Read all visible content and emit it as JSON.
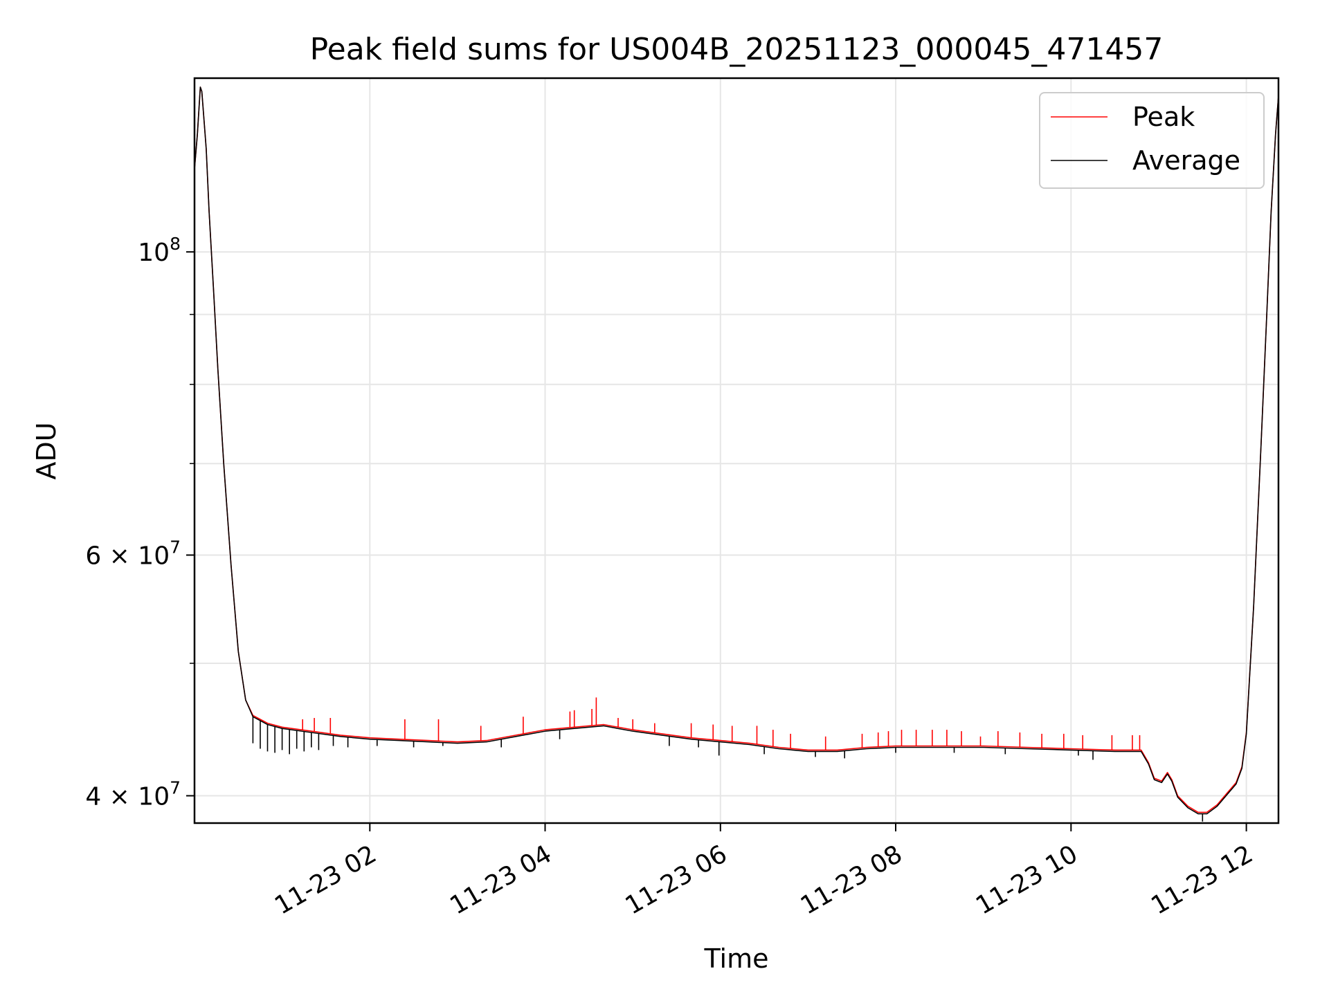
{
  "chart_data": {
    "type": "line",
    "title": "Peak field sums for US004B_20251123_000045_471457",
    "xlabel": "Time",
    "ylabel": "ADU",
    "x_type": "time",
    "xlim": [
      "2025-11-23 00:00",
      "2025-11-23 12:22"
    ],
    "ylim": [
      38200000,
      134000000
    ],
    "y_scale": "log",
    "grid": true,
    "legend_position": "top-right",
    "x_ticks": [
      {
        "value": "2025-11-23 02:00",
        "label": "11-23 02"
      },
      {
        "value": "2025-11-23 04:00",
        "label": "11-23 04"
      },
      {
        "value": "2025-11-23 06:00",
        "label": "11-23 06"
      },
      {
        "value": "2025-11-23 08:00",
        "label": "11-23 08"
      },
      {
        "value": "2025-11-23 10:00",
        "label": "11-23 10"
      },
      {
        "value": "2025-11-23 12:00",
        "label": "11-23 12"
      }
    ],
    "y_ticks": [
      {
        "value": 100000000,
        "base": "10",
        "exp": "8"
      },
      {
        "value": 60000000,
        "base": "6 × 10",
        "exp": "7"
      },
      {
        "value": 40000000,
        "base": "4 × 10",
        "exp": "7"
      }
    ],
    "y_minor_ticks": [
      50000000,
      70000000,
      80000000,
      90000000
    ],
    "series": [
      {
        "name": "Peak",
        "color": "#ff0000",
        "points": [
          [
            "00:00",
            115000000
          ],
          [
            "00:02",
            122000000
          ],
          [
            "00:04",
            132000000
          ],
          [
            "00:05",
            131000000
          ],
          [
            "00:08",
            119000000
          ],
          [
            "00:10",
            107000000
          ],
          [
            "00:13",
            94000000
          ],
          [
            "00:16",
            82000000
          ],
          [
            "00:20",
            70000000
          ],
          [
            "00:25",
            59000000
          ],
          [
            "00:30",
            51000000
          ],
          [
            "00:35",
            47000000
          ],
          [
            "00:40",
            45800000
          ],
          [
            "00:50",
            45200000
          ],
          [
            "01:00",
            44900000
          ],
          [
            "01:20",
            44600000
          ],
          [
            "01:40",
            44300000
          ],
          [
            "02:00",
            44100000
          ],
          [
            "02:20",
            44000000
          ],
          [
            "02:40",
            43900000
          ],
          [
            "03:00",
            43800000
          ],
          [
            "03:20",
            43900000
          ],
          [
            "03:40",
            44300000
          ],
          [
            "04:00",
            44700000
          ],
          [
            "04:20",
            44900000
          ],
          [
            "04:40",
            45100000
          ],
          [
            "05:00",
            44700000
          ],
          [
            "05:20",
            44400000
          ],
          [
            "05:40",
            44100000
          ],
          [
            "06:00",
            43900000
          ],
          [
            "06:20",
            43700000
          ],
          [
            "06:40",
            43400000
          ],
          [
            "07:00",
            43200000
          ],
          [
            "07:20",
            43200000
          ],
          [
            "07:40",
            43400000
          ],
          [
            "08:00",
            43500000
          ],
          [
            "08:30",
            43500000
          ],
          [
            "09:00",
            43500000
          ],
          [
            "09:30",
            43400000
          ],
          [
            "10:00",
            43300000
          ],
          [
            "10:30",
            43200000
          ],
          [
            "10:48",
            43200000
          ],
          [
            "10:53",
            42300000
          ],
          [
            "10:57",
            41200000
          ],
          [
            "11:02",
            41000000
          ],
          [
            "11:06",
            41600000
          ],
          [
            "11:09",
            41100000
          ],
          [
            "11:13",
            40000000
          ],
          [
            "11:20",
            39300000
          ],
          [
            "11:27",
            38900000
          ],
          [
            "11:33",
            38900000
          ],
          [
            "11:40",
            39400000
          ],
          [
            "11:47",
            40200000
          ],
          [
            "11:53",
            40900000
          ],
          [
            "11:57",
            42000000
          ],
          [
            "12:00",
            44500000
          ],
          [
            "12:05",
            55000000
          ],
          [
            "12:10",
            72000000
          ],
          [
            "12:14",
            90000000
          ],
          [
            "12:17",
            107000000
          ],
          [
            "12:20",
            122000000
          ],
          [
            "12:22",
            130000000
          ]
        ],
        "spikes": [
          [
            "01:14",
            45500000
          ],
          [
            "01:22",
            45600000
          ],
          [
            "01:33",
            45600000
          ],
          [
            "02:24",
            45500000
          ],
          [
            "02:47",
            45500000
          ],
          [
            "03:16",
            45000000
          ],
          [
            "03:45",
            45700000
          ],
          [
            "04:17",
            46100000
          ],
          [
            "04:20",
            46200000
          ],
          [
            "04:32",
            46300000
          ],
          [
            "04:35",
            47200000
          ],
          [
            "04:50",
            45600000
          ],
          [
            "05:00",
            45500000
          ],
          [
            "05:15",
            45200000
          ],
          [
            "05:40",
            45200000
          ],
          [
            "05:55",
            45100000
          ],
          [
            "06:08",
            45000000
          ],
          [
            "06:25",
            45000000
          ],
          [
            "06:36",
            44700000
          ],
          [
            "06:48",
            44400000
          ],
          [
            "07:12",
            44200000
          ],
          [
            "07:37",
            44400000
          ],
          [
            "07:48",
            44500000
          ],
          [
            "07:55",
            44600000
          ],
          [
            "08:04",
            44700000
          ],
          [
            "08:14",
            44700000
          ],
          [
            "08:25",
            44700000
          ],
          [
            "08:35",
            44700000
          ],
          [
            "08:45",
            44600000
          ],
          [
            "08:58",
            44200000
          ],
          [
            "09:10",
            44600000
          ],
          [
            "09:25",
            44500000
          ],
          [
            "09:40",
            44400000
          ],
          [
            "09:55",
            44400000
          ],
          [
            "10:08",
            44300000
          ],
          [
            "10:28",
            44300000
          ],
          [
            "10:42",
            44300000
          ],
          [
            "10:47",
            44300000
          ]
        ]
      },
      {
        "name": "Average",
        "color": "#000000",
        "points": [
          [
            "00:00",
            115000000
          ],
          [
            "00:02",
            122000000
          ],
          [
            "00:04",
            132000000
          ],
          [
            "00:05",
            131000000
          ],
          [
            "00:08",
            119000000
          ],
          [
            "00:10",
            107000000
          ],
          [
            "00:13",
            94000000
          ],
          [
            "00:16",
            82000000
          ],
          [
            "00:20",
            70000000
          ],
          [
            "00:25",
            59000000
          ],
          [
            "00:30",
            51000000
          ],
          [
            "00:35",
            47000000
          ],
          [
            "00:40",
            45700000
          ],
          [
            "00:50",
            45100000
          ],
          [
            "01:00",
            44800000
          ],
          [
            "01:20",
            44500000
          ],
          [
            "01:40",
            44200000
          ],
          [
            "02:00",
            44000000
          ],
          [
            "02:20",
            43900000
          ],
          [
            "02:40",
            43800000
          ],
          [
            "03:00",
            43700000
          ],
          [
            "03:20",
            43800000
          ],
          [
            "03:40",
            44200000
          ],
          [
            "04:00",
            44600000
          ],
          [
            "04:20",
            44800000
          ],
          [
            "04:40",
            45000000
          ],
          [
            "05:00",
            44600000
          ],
          [
            "05:20",
            44300000
          ],
          [
            "05:40",
            44000000
          ],
          [
            "06:00",
            43800000
          ],
          [
            "06:20",
            43600000
          ],
          [
            "06:40",
            43300000
          ],
          [
            "07:00",
            43100000
          ],
          [
            "07:20",
            43100000
          ],
          [
            "07:40",
            43300000
          ],
          [
            "08:00",
            43400000
          ],
          [
            "08:30",
            43400000
          ],
          [
            "09:00",
            43400000
          ],
          [
            "09:30",
            43300000
          ],
          [
            "10:00",
            43200000
          ],
          [
            "10:30",
            43100000
          ],
          [
            "10:48",
            43100000
          ],
          [
            "10:53",
            42200000
          ],
          [
            "10:57",
            41100000
          ],
          [
            "11:02",
            40900000
          ],
          [
            "11:06",
            41500000
          ],
          [
            "11:09",
            41000000
          ],
          [
            "11:13",
            39900000
          ],
          [
            "11:20",
            39200000
          ],
          [
            "11:27",
            38800000
          ],
          [
            "11:33",
            38800000
          ],
          [
            "11:40",
            39300000
          ],
          [
            "11:47",
            40100000
          ],
          [
            "11:53",
            40800000
          ],
          [
            "11:57",
            41900000
          ],
          [
            "12:00",
            44400000
          ],
          [
            "12:05",
            55000000
          ],
          [
            "12:10",
            72000000
          ],
          [
            "12:14",
            90000000
          ],
          [
            "12:17",
            107000000
          ],
          [
            "12:20",
            122000000
          ],
          [
            "12:22",
            130000000
          ]
        ],
        "dips": [
          [
            "00:40",
            43700000
          ],
          [
            "00:45",
            43300000
          ],
          [
            "00:50",
            43100000
          ],
          [
            "00:55",
            43000000
          ],
          [
            "01:00",
            43200000
          ],
          [
            "01:05",
            42900000
          ],
          [
            "01:10",
            43300000
          ],
          [
            "01:15",
            43100000
          ],
          [
            "01:20",
            43400000
          ],
          [
            "01:25",
            43200000
          ],
          [
            "01:35",
            43500000
          ],
          [
            "01:45",
            43400000
          ],
          [
            "02:05",
            43500000
          ],
          [
            "02:30",
            43400000
          ],
          [
            "02:50",
            43500000
          ],
          [
            "03:30",
            43400000
          ],
          [
            "04:10",
            44000000
          ],
          [
            "05:25",
            43500000
          ],
          [
            "05:45",
            43400000
          ],
          [
            "05:59",
            42800000
          ],
          [
            "06:30",
            42900000
          ],
          [
            "07:05",
            42700000
          ],
          [
            "07:25",
            42600000
          ],
          [
            "08:00",
            43000000
          ],
          [
            "08:40",
            43000000
          ],
          [
            "09:15",
            42900000
          ],
          [
            "10:05",
            42800000
          ],
          [
            "10:15",
            42500000
          ],
          [
            "11:30",
            38300000
          ]
        ]
      }
    ]
  }
}
